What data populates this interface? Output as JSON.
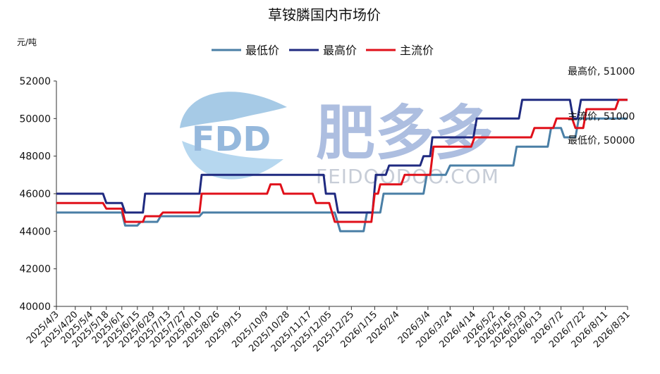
{
  "chart_data": {
    "type": "line",
    "title": "草铵膦国内市场价",
    "ylabel": "元/吨",
    "xlabel": "",
    "ylim": [
      40000,
      52000
    ],
    "yticks": [
      40000,
      42000,
      44000,
      46000,
      48000,
      50000,
      52000
    ],
    "grid": false,
    "legend_position": "top-center",
    "x_dates": [
      "2025/4/3",
      "2025/4/20",
      "2025/5/4",
      "2025/5/18",
      "2025/6/1",
      "2025/6/15",
      "2025/6/29",
      "2025/7/13",
      "2025/7/27",
      "2025/8/10",
      "2025/8/26",
      "2025/9/15",
      "2025/10/9",
      "2025/10/28",
      "2025/11/17",
      "2025/12/05",
      "2025/12/25",
      "2026/1/15",
      "2026/2/4",
      "2026/3/4",
      "2026/3/24",
      "2026/4/14",
      "2026/5/2",
      "2026/5/16",
      "2026/5/30",
      "2026/6/13",
      "2026/7/2",
      "2026/7/22",
      "2026/8/11",
      "2026/8/31"
    ],
    "series": [
      {
        "name": "最低价",
        "color": "#4a7fa6",
        "step_points": [
          [
            "2025/4/3",
            45000
          ],
          [
            "2025/6/1",
            45000
          ],
          [
            "2025/6/4",
            44300
          ],
          [
            "2025/6/15",
            44300
          ],
          [
            "2025/6/18",
            44500
          ],
          [
            "2025/7/3",
            44500
          ],
          [
            "2025/7/6",
            44800
          ],
          [
            "2025/8/10",
            44800
          ],
          [
            "2025/8/13",
            45000
          ],
          [
            "2025/12/10",
            45000
          ],
          [
            "2025/12/15",
            44000
          ],
          [
            "2026/1/5",
            44000
          ],
          [
            "2026/1/8",
            45000
          ],
          [
            "2026/1/20",
            45000
          ],
          [
            "2026/1/23",
            46000
          ],
          [
            "2026/2/28",
            46000
          ],
          [
            "2026/3/3",
            47000
          ],
          [
            "2026/3/20",
            47000
          ],
          [
            "2026/3/24",
            47500
          ],
          [
            "2026/5/20",
            47500
          ],
          [
            "2026/5/23",
            48500
          ],
          [
            "2026/6/20",
            48500
          ],
          [
            "2026/6/23",
            49500
          ],
          [
            "2026/7/2",
            49500
          ],
          [
            "2026/7/5",
            49000
          ],
          [
            "2026/7/15",
            49000
          ],
          [
            "2026/7/18",
            50000
          ],
          [
            "2026/8/31",
            50000
          ]
        ],
        "end_label": "最低价, 50000"
      },
      {
        "name": "最高价",
        "color": "#1f2a80",
        "step_points": [
          [
            "2025/4/3",
            46000
          ],
          [
            "2025/5/15",
            46000
          ],
          [
            "2025/5/18",
            45500
          ],
          [
            "2025/6/1",
            45500
          ],
          [
            "2025/6/4",
            45000
          ],
          [
            "2025/6/20",
            45000
          ],
          [
            "2025/6/22",
            46000
          ],
          [
            "2025/8/10",
            46000
          ],
          [
            "2025/8/12",
            47000
          ],
          [
            "2025/11/30",
            47000
          ],
          [
            "2025/12/2",
            46000
          ],
          [
            "2025/12/10",
            46000
          ],
          [
            "2025/12/13",
            45000
          ],
          [
            "2026/1/13",
            45000
          ],
          [
            "2026/1/16",
            47000
          ],
          [
            "2026/1/25",
            47000
          ],
          [
            "2026/1/28",
            47500
          ],
          [
            "2026/2/25",
            47500
          ],
          [
            "2026/2/28",
            48000
          ],
          [
            "2026/3/6",
            48000
          ],
          [
            "2026/3/8",
            49000
          ],
          [
            "2026/4/14",
            49000
          ],
          [
            "2026/4/17",
            50000
          ],
          [
            "2026/5/25",
            50000
          ],
          [
            "2026/5/28",
            51000
          ],
          [
            "2026/7/10",
            51000
          ],
          [
            "2026/7/13",
            50000
          ],
          [
            "2026/7/17",
            50000
          ],
          [
            "2026/7/20",
            51000
          ],
          [
            "2026/8/31",
            51000
          ]
        ],
        "end_label": "最高价, 51000"
      },
      {
        "name": "主流价",
        "color": "#e0101a",
        "step_points": [
          [
            "2025/4/3",
            45500
          ],
          [
            "2025/5/15",
            45500
          ],
          [
            "2025/5/18",
            45200
          ],
          [
            "2025/6/1",
            45200
          ],
          [
            "2025/6/4",
            44500
          ],
          [
            "2025/6/20",
            44500
          ],
          [
            "2025/6/22",
            44800
          ],
          [
            "2025/7/5",
            44800
          ],
          [
            "2025/7/8",
            45000
          ],
          [
            "2025/8/10",
            45000
          ],
          [
            "2025/8/12",
            46000
          ],
          [
            "2025/10/10",
            46000
          ],
          [
            "2025/10/13",
            46500
          ],
          [
            "2025/10/22",
            46500
          ],
          [
            "2025/10/25",
            46000
          ],
          [
            "2025/11/20",
            46000
          ],
          [
            "2025/11/23",
            45500
          ],
          [
            "2025/12/5",
            45500
          ],
          [
            "2025/12/10",
            44500
          ],
          [
            "2026/1/12",
            44500
          ],
          [
            "2026/1/15",
            46000
          ],
          [
            "2026/1/18",
            46000
          ],
          [
            "2026/1/20",
            46500
          ],
          [
            "2026/2/8",
            46500
          ],
          [
            "2026/2/11",
            47000
          ],
          [
            "2026/3/6",
            47000
          ],
          [
            "2026/3/9",
            48500
          ],
          [
            "2026/4/12",
            48500
          ],
          [
            "2026/4/15",
            49000
          ],
          [
            "2026/6/5",
            49000
          ],
          [
            "2026/6/8",
            49500
          ],
          [
            "2026/6/25",
            49500
          ],
          [
            "2026/6/28",
            50000
          ],
          [
            "2026/7/12",
            50000
          ],
          [
            "2026/7/15",
            49500
          ],
          [
            "2026/7/22",
            49500
          ],
          [
            "2026/7/25",
            50500
          ],
          [
            "2026/8/20",
            50500
          ],
          [
            "2026/8/23",
            51000
          ],
          [
            "2026/8/31",
            51000
          ]
        ],
        "end_label": "主流价, 51000"
      }
    ]
  },
  "watermark": {
    "logo_text": "FDD",
    "brand_text": "肥多多",
    "site_text": "FEIDOODOO.COM"
  }
}
